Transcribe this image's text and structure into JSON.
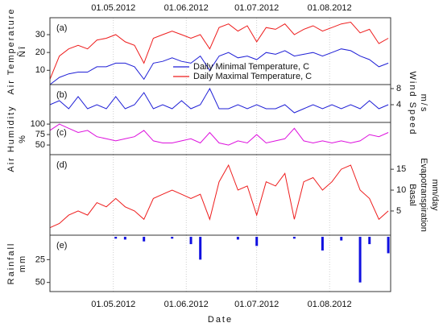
{
  "chart_data": [
    {
      "type": "line",
      "label": "(a)",
      "ylabel": [
        "Air Temperature",
        "Ñî"
      ],
      "yaxis_side": "left",
      "x": [
        "04.04.2012",
        "08.04.2012",
        "12.04.2012",
        "16.04.2012",
        "20.04.2012",
        "24.04.2012",
        "28.04.2012",
        "02.05.2012",
        "06.05.2012",
        "10.05.2012",
        "14.05.2012",
        "18.05.2012",
        "22.05.2012",
        "26.05.2012",
        "30.05.2012",
        "03.06.2012",
        "07.06.2012",
        "11.06.2012",
        "15.06.2012",
        "19.06.2012",
        "23.06.2012",
        "27.06.2012",
        "01.07.2012",
        "05.07.2012",
        "09.07.2012",
        "13.07.2012",
        "17.07.2012",
        "21.07.2012",
        "25.07.2012",
        "29.07.2012",
        "02.08.2012",
        "06.08.2012",
        "10.08.2012",
        "14.08.2012",
        "18.08.2012",
        "22.08.2012",
        "26.08.2012"
      ],
      "series": [
        {
          "name": "Daily Minimal Temperature, C",
          "color": "#1f1fd6",
          "values": [
            2,
            6,
            8,
            9,
            9,
            12,
            12,
            14,
            14,
            12,
            5,
            14,
            15,
            17,
            15,
            14,
            18,
            10,
            18,
            20,
            17,
            18,
            16,
            20,
            19,
            21,
            18,
            19,
            20,
            18,
            20,
            22,
            21,
            18,
            16,
            12,
            14
          ]
        },
        {
          "name": "Daily Maximal Temperature, C",
          "color": "#ee1c1c",
          "values": [
            5,
            18,
            22,
            24,
            22,
            27,
            28,
            30,
            26,
            24,
            14,
            28,
            30,
            32,
            30,
            28,
            30,
            22,
            34,
            36,
            32,
            35,
            26,
            34,
            33,
            36,
            30,
            33,
            35,
            32,
            34,
            36,
            37,
            31,
            33,
            25,
            28
          ]
        }
      ],
      "xlim": [
        "04.04.2012",
        "27.08.2012"
      ],
      "xticks": [
        "01.05.2012",
        "01.06.2012",
        "01.07.2012",
        "01.08.2012"
      ],
      "ylim": [
        2,
        39.5
      ],
      "yticks": [
        10,
        20,
        30
      ],
      "grid": true,
      "legend": "bottom-right"
    },
    {
      "type": "line",
      "label": "(b)",
      "ylabel": [
        "Wind Speed",
        "m/s"
      ],
      "yaxis_side": "right",
      "x": [
        "04.04.2012",
        "08.04.2012",
        "12.04.2012",
        "16.04.2012",
        "20.04.2012",
        "24.04.2012",
        "28.04.2012",
        "02.05.2012",
        "06.05.2012",
        "10.05.2012",
        "14.05.2012",
        "18.05.2012",
        "22.05.2012",
        "26.05.2012",
        "30.05.2012",
        "03.06.2012",
        "07.06.2012",
        "11.06.2012",
        "15.06.2012",
        "19.06.2012",
        "23.06.2012",
        "27.06.2012",
        "01.07.2012",
        "05.07.2012",
        "09.07.2012",
        "13.07.2012",
        "17.07.2012",
        "21.07.2012",
        "25.07.2012",
        "29.07.2012",
        "02.08.2012",
        "06.08.2012",
        "10.08.2012",
        "14.08.2012",
        "18.08.2012",
        "22.08.2012",
        "26.08.2012"
      ],
      "series": [
        {
          "color": "#1f1fd6",
          "values": [
            4,
            5,
            3,
            6,
            3,
            4,
            3,
            6,
            3,
            4,
            7,
            3,
            4,
            3,
            5,
            3,
            4,
            8,
            3,
            3,
            4,
            3,
            4,
            3,
            3,
            4,
            2,
            3,
            4,
            3,
            4,
            3,
            4,
            3,
            5,
            3,
            4
          ]
        }
      ],
      "xlim": [
        "04.04.2012",
        "27.08.2012"
      ],
      "xticks": [
        "01.05.2012",
        "01.06.2012",
        "01.07.2012",
        "01.08.2012"
      ],
      "ylim": [
        -0.4,
        9
      ],
      "yticks": [
        4,
        8
      ],
      "grid": true
    },
    {
      "type": "line",
      "label": "(c)",
      "ylabel": [
        "Air Humidity",
        "%"
      ],
      "yaxis_side": "left",
      "x": [
        "04.04.2012",
        "08.04.2012",
        "12.04.2012",
        "16.04.2012",
        "20.04.2012",
        "24.04.2012",
        "28.04.2012",
        "02.05.2012",
        "06.05.2012",
        "10.05.2012",
        "14.05.2012",
        "18.05.2012",
        "22.05.2012",
        "26.05.2012",
        "30.05.2012",
        "03.06.2012",
        "07.06.2012",
        "11.06.2012",
        "15.06.2012",
        "19.06.2012",
        "23.06.2012",
        "27.06.2012",
        "01.07.2012",
        "05.07.2012",
        "09.07.2012",
        "13.07.2012",
        "17.07.2012",
        "21.07.2012",
        "25.07.2012",
        "29.07.2012",
        "02.08.2012",
        "06.08.2012",
        "10.08.2012",
        "14.08.2012",
        "18.08.2012",
        "22.08.2012",
        "26.08.2012"
      ],
      "series": [
        {
          "color": "#dd10dd",
          "values": [
            85,
            100,
            90,
            80,
            85,
            70,
            65,
            60,
            65,
            70,
            85,
            60,
            55,
            55,
            60,
            65,
            55,
            80,
            55,
            50,
            60,
            55,
            75,
            55,
            60,
            65,
            90,
            60,
            55,
            60,
            55,
            60,
            55,
            60,
            75,
            70,
            80
          ]
        }
      ],
      "xlim": [
        "04.04.2012",
        "27.08.2012"
      ],
      "xticks": [
        "01.05.2012",
        "01.06.2012",
        "01.07.2012",
        "01.08.2012"
      ],
      "ylim": [
        27,
        104
      ],
      "yticks": [
        50,
        75,
        100
      ],
      "grid": true
    },
    {
      "type": "line",
      "label": "(d)",
      "ylabel": [
        "Basal",
        "Evapotranspiration",
        "mm/day"
      ],
      "yaxis_side": "right",
      "x": [
        "04.04.2012",
        "08.04.2012",
        "12.04.2012",
        "16.04.2012",
        "20.04.2012",
        "24.04.2012",
        "28.04.2012",
        "02.05.2012",
        "06.05.2012",
        "10.05.2012",
        "14.05.2012",
        "18.05.2012",
        "22.05.2012",
        "26.05.2012",
        "30.05.2012",
        "03.06.2012",
        "07.06.2012",
        "11.06.2012",
        "15.06.2012",
        "19.06.2012",
        "23.06.2012",
        "27.06.2012",
        "01.07.2012",
        "05.07.2012",
        "09.07.2012",
        "13.07.2012",
        "17.07.2012",
        "21.07.2012",
        "25.07.2012",
        "29.07.2012",
        "02.08.2012",
        "06.08.2012",
        "10.08.2012",
        "14.08.2012",
        "18.08.2012",
        "22.08.2012",
        "26.08.2012"
      ],
      "series": [
        {
          "color": "#ee1c1c",
          "values": [
            1,
            2,
            4,
            5,
            4,
            7,
            6,
            8,
            6,
            5,
            3,
            8,
            9,
            10,
            9,
            8,
            9,
            3,
            12,
            16,
            10,
            11,
            4,
            12,
            11,
            14,
            3,
            12,
            13,
            10,
            12,
            15,
            16,
            10,
            8,
            3,
            5
          ]
        }
      ],
      "xlim": [
        "04.04.2012",
        "27.08.2012"
      ],
      "xticks": [
        "01.05.2012",
        "01.06.2012",
        "01.07.2012",
        "01.08.2012"
      ],
      "ylim": [
        -0.8,
        18.5
      ],
      "yticks": [
        5,
        10,
        15
      ],
      "grid": true
    },
    {
      "type": "bar",
      "label": "(e)",
      "ylabel": [
        "Rainfall",
        "mm"
      ],
      "yaxis_side": "left",
      "xlabel": "Date",
      "x": [
        "04.04.2012",
        "08.04.2012",
        "12.04.2012",
        "16.04.2012",
        "20.04.2012",
        "24.04.2012",
        "28.04.2012",
        "02.05.2012",
        "06.05.2012",
        "10.05.2012",
        "14.05.2012",
        "18.05.2012",
        "22.05.2012",
        "26.05.2012",
        "30.05.2012",
        "03.06.2012",
        "07.06.2012",
        "11.06.2012",
        "15.06.2012",
        "19.06.2012",
        "23.06.2012",
        "27.06.2012",
        "01.07.2012",
        "05.07.2012",
        "09.07.2012",
        "13.07.2012",
        "17.07.2012",
        "21.07.2012",
        "25.07.2012",
        "29.07.2012",
        "02.08.2012",
        "06.08.2012",
        "10.08.2012",
        "14.08.2012",
        "18.08.2012",
        "22.08.2012",
        "26.08.2012"
      ],
      "series": [
        {
          "color": "#1010e0",
          "values": [
            0,
            0,
            0,
            0,
            0,
            0,
            0,
            2,
            3,
            0,
            5,
            0,
            0,
            2,
            0,
            8,
            25,
            0,
            0,
            0,
            3,
            0,
            10,
            0,
            0,
            0,
            2,
            0,
            0,
            15,
            0,
            4,
            0,
            50,
            8,
            0,
            18
          ]
        }
      ],
      "xlim": [
        "04.04.2012",
        "27.08.2012"
      ],
      "xticks": [
        "01.05.2012",
        "01.06.2012",
        "01.07.2012",
        "01.08.2012"
      ],
      "ylim": [
        -1.8,
        60
      ],
      "y_inverted": true,
      "yticks": [
        25,
        50
      ],
      "grid": true
    }
  ]
}
